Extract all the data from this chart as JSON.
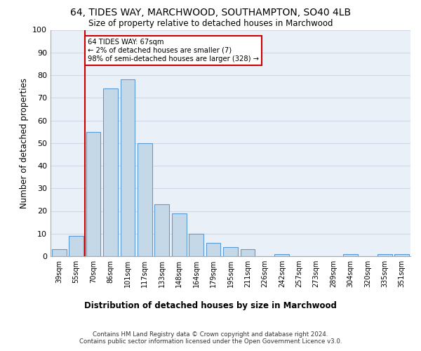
{
  "title": "64, TIDES WAY, MARCHWOOD, SOUTHAMPTON, SO40 4LB",
  "subtitle": "Size of property relative to detached houses in Marchwood",
  "xlabel": "Distribution of detached houses by size in Marchwood",
  "ylabel": "Number of detached properties",
  "categories": [
    "39sqm",
    "55sqm",
    "70sqm",
    "86sqm",
    "101sqm",
    "117sqm",
    "133sqm",
    "148sqm",
    "164sqm",
    "179sqm",
    "195sqm",
    "211sqm",
    "226sqm",
    "242sqm",
    "257sqm",
    "273sqm",
    "289sqm",
    "304sqm",
    "320sqm",
    "335sqm",
    "351sqm"
  ],
  "values": [
    3,
    9,
    55,
    74,
    78,
    50,
    23,
    19,
    10,
    6,
    4,
    3,
    0,
    1,
    0,
    0,
    0,
    1,
    0,
    1,
    1
  ],
  "bar_color": "#c5d8e8",
  "bar_edge_color": "#5b9bd5",
  "annotation_text_line1": "64 TIDES WAY: 67sqm",
  "annotation_text_line2": "← 2% of detached houses are smaller (7)",
  "annotation_text_line3": "98% of semi-detached houses are larger (328) →",
  "annotation_box_color": "#ffffff",
  "annotation_box_edge_color": "#cc0000",
  "vline_color": "#cc0000",
  "grid_color": "#d0d8e8",
  "bg_color": "#eaf0f8",
  "ylim": [
    0,
    100
  ],
  "yticks": [
    0,
    10,
    20,
    30,
    40,
    50,
    60,
    70,
    80,
    90,
    100
  ],
  "footer_line1": "Contains HM Land Registry data © Crown copyright and database right 2024.",
  "footer_line2": "Contains public sector information licensed under the Open Government Licence v3.0."
}
